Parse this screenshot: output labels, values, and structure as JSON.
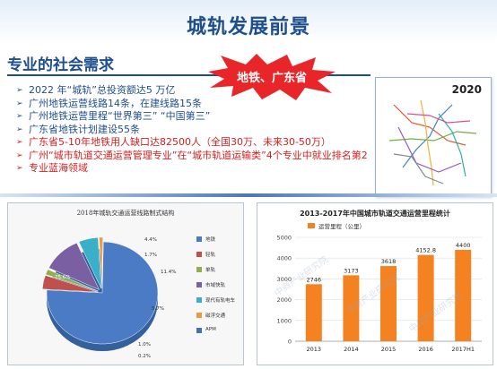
{
  "header": {
    "title": "城轨发展前景"
  },
  "section": {
    "title": "专业的社会需求"
  },
  "callout": {
    "label": "地铁、广东省"
  },
  "bullets": [
    {
      "text": "2022 年“城轨”总投资额达5 万亿",
      "color": "blue"
    },
    {
      "text": "广州地铁运营线路14条，在建线路15条",
      "color": "blue"
    },
    {
      "text": "广州地铁运营里程“世界第三”  “中国第三”",
      "color": "blue"
    },
    {
      "text": "广东省地铁计划建设55条",
      "color": "blue"
    },
    {
      "text": "广东省5-10年地铁用人缺口达82500人（全国30万、未来30-50万）",
      "color": "red"
    },
    {
      "text": "广州“城市轨道交通运营管理专业”在“城市轨道运输类”4个专业中就业排名第2",
      "color": "red"
    },
    {
      "text": "专业蓝海领域",
      "color": "red"
    }
  ],
  "map": {
    "year": "2020"
  },
  "chart_data": [
    {
      "type": "pie",
      "title": "2018年城轨交通运营线路制式结构",
      "slices": [
        {
          "label": "地铁",
          "value": 75.6,
          "color": "#4a7bc4"
        },
        {
          "label": "轻轨",
          "value": 4.4,
          "color": "#c0504d"
        },
        {
          "label": "单轨",
          "value": 1.7,
          "color": "#8fb04e"
        },
        {
          "label": "市域快轨",
          "value": 11.4,
          "color": "#7b5fa3"
        },
        {
          "label": "现代有轨电车",
          "value": 5.7,
          "color": "#3ab0c8"
        },
        {
          "label": "磁浮交通",
          "value": 1.0,
          "color": "#f29a3a"
        },
        {
          "label": "APM",
          "value": 0.2,
          "color": "#4572a7"
        }
      ],
      "slice_labels": [
        "75.6%",
        "4.4%",
        "1.7%",
        "11.4%",
        "5.7%",
        "1.0%",
        "0.2%"
      ]
    },
    {
      "type": "bar",
      "title": "2013-2017年中国城市轨道交通运营里程统计",
      "legend": "运营里程（公里）",
      "categories": [
        "2013",
        "2014",
        "2015",
        "2016",
        "2017H1"
      ],
      "values": [
        2746,
        3173,
        3618,
        4152.8,
        4400
      ],
      "value_labels": [
        "2746",
        "3173",
        "3618",
        "4152.8",
        "4400"
      ],
      "ylim": [
        0,
        5000
      ],
      "yticks": [
        "0",
        "1000",
        "2000",
        "3000",
        "4000",
        "5000"
      ],
      "color": "#f58220"
    }
  ],
  "watermarks": [
    "中商产业研究院",
    "中商产业研究院",
    "中商产业研究院"
  ]
}
